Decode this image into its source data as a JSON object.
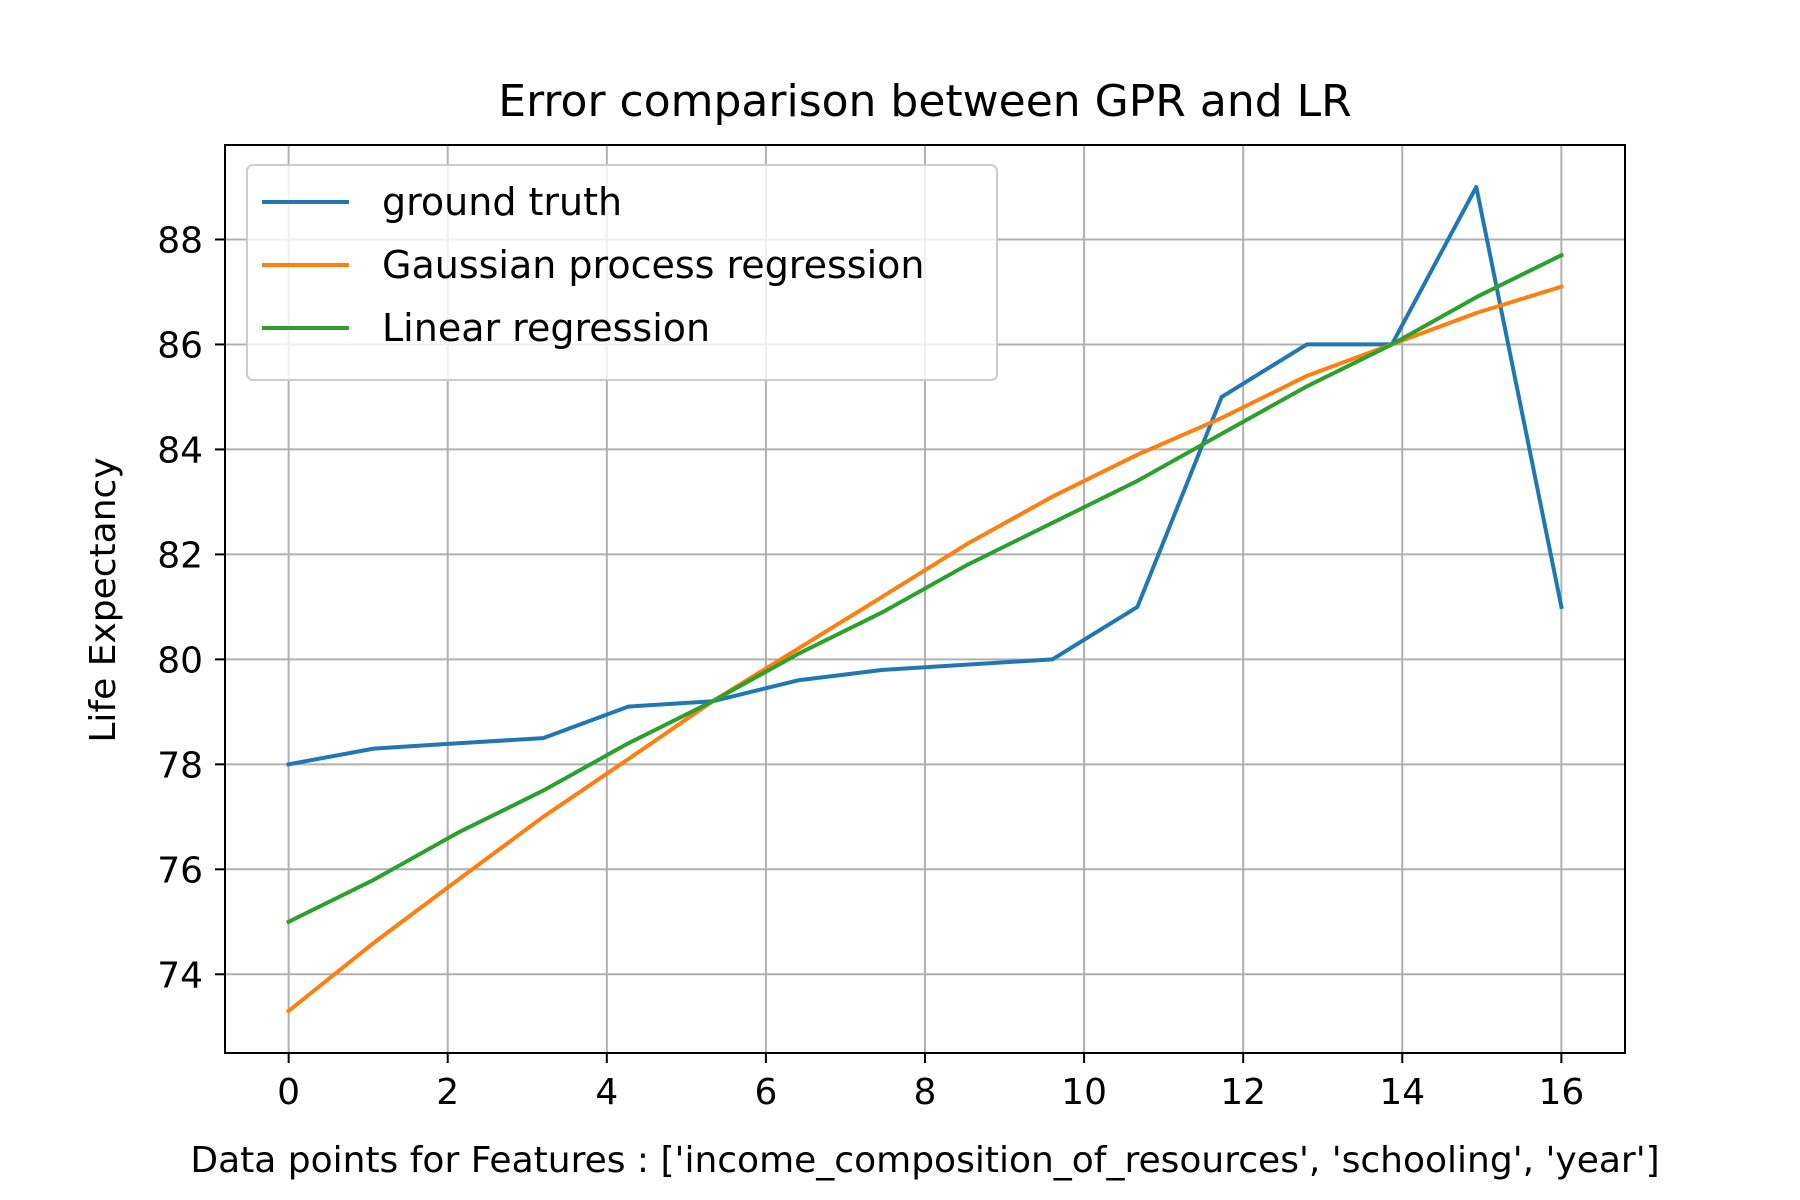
{
  "chart_data": {
    "type": "line",
    "title": "Error comparison between GPR and LR",
    "xlabel": "Data points for Features : ['income_composition_of_resources', 'schooling', 'year']",
    "ylabel": "Life Expectancy",
    "xlim": [
      -0.8,
      16.8
    ],
    "ylim": [
      72.5,
      89.8
    ],
    "xticks": [
      0,
      2,
      4,
      6,
      8,
      10,
      12,
      14,
      16
    ],
    "yticks": [
      74,
      76,
      78,
      80,
      82,
      84,
      86,
      88
    ],
    "grid": true,
    "legend_position": "upper-left",
    "x": [
      0,
      1.07,
      2.13,
      3.2,
      4.27,
      5.33,
      6.4,
      7.47,
      8.53,
      9.6,
      10.67,
      11.73,
      12.8,
      13.87,
      14.93,
      16
    ],
    "series": [
      {
        "name": "ground truth",
        "color": "#1f77b4",
        "values": [
          78.0,
          78.3,
          78.4,
          78.5,
          79.1,
          79.2,
          79.6,
          79.8,
          79.9,
          80.0,
          81.0,
          85.0,
          86.0,
          86.0,
          89.0,
          81.0
        ]
      },
      {
        "name": "Gaussian process regression",
        "color": "#ff7f0e",
        "values": [
          73.3,
          74.6,
          75.8,
          77.0,
          78.1,
          79.2,
          80.2,
          81.2,
          82.2,
          83.1,
          83.9,
          84.6,
          85.4,
          86.0,
          86.6,
          87.1
        ]
      },
      {
        "name": "Linear regression",
        "color": "#2ca02c",
        "values": [
          75.0,
          75.8,
          76.7,
          77.5,
          78.4,
          79.2,
          80.1,
          80.9,
          81.8,
          82.6,
          83.4,
          84.3,
          85.2,
          86.0,
          86.9,
          87.7
        ]
      }
    ]
  }
}
